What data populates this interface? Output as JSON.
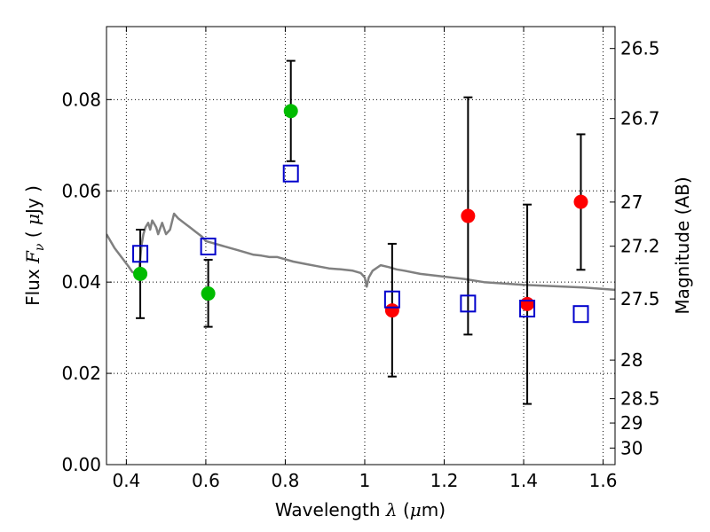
{
  "chart_data": {
    "type": "scatter",
    "xlabel": {
      "prefix": "Wavelength  ",
      "symbol": "λ",
      "suffix": " (",
      "mu": "μ",
      "unit": "m)"
    },
    "ylabel": {
      "prefix": "Flux  ",
      "symbol": "F",
      "subscript": "ν",
      "suffix": "  ( ",
      "mu": "μ",
      "unit": "Jy )"
    },
    "y2label": "Magnitude (AB)",
    "xlim": [
      0.35,
      1.63
    ],
    "ylim": [
      0.0,
      0.096
    ],
    "x_ticks": [
      0.4,
      0.6,
      0.8,
      1.0,
      1.2,
      1.4,
      1.6
    ],
    "x_tick_labels": [
      "0.4",
      "0.6",
      "0.8",
      "1",
      "1.2",
      "1.4",
      "1.6"
    ],
    "y_ticks": [
      0.0,
      0.02,
      0.04,
      0.06,
      0.08
    ],
    "y_tick_labels": [
      "0.00",
      "0.02",
      "0.04",
      "0.06",
      "0.08"
    ],
    "mag_ticks": [
      26.5,
      26.7,
      27,
      27.2,
      27.5,
      28,
      28.5,
      29,
      30
    ],
    "mag_tick_labels": [
      "26.5",
      "26.7",
      "27",
      "27.2",
      "27.5",
      "28",
      "28.5",
      "29",
      "30"
    ],
    "grid": true,
    "colors": {
      "green": "#00bb00",
      "red": "#ff0000",
      "model_box": "#0000cc",
      "spectrum": "#808080",
      "errorbar": "#000000"
    },
    "series": [
      {
        "marker": "circle",
        "color": "#00bb00",
        "points": [
          {
            "x": 0.435,
            "y": 0.0418,
            "ylo": 0.0321,
            "yhi": 0.0515
          },
          {
            "x": 0.606,
            "y": 0.0375,
            "ylo": 0.0302,
            "yhi": 0.0449
          },
          {
            "x": 0.814,
            "y": 0.0775,
            "ylo": 0.0665,
            "yhi": 0.0885
          }
        ]
      },
      {
        "marker": "circle",
        "color": "#ff0000",
        "points": [
          {
            "x": 1.069,
            "y": 0.0338,
            "ylo": 0.0193,
            "yhi": 0.0484
          },
          {
            "x": 1.26,
            "y": 0.0545,
            "ylo": 0.0285,
            "yhi": 0.0805
          },
          {
            "x": 1.409,
            "y": 0.0352,
            "ylo": 0.0133,
            "yhi": 0.057
          },
          {
            "x": 1.544,
            "y": 0.0576,
            "ylo": 0.0427,
            "yhi": 0.0724
          }
        ]
      },
      {
        "marker": "open-square",
        "color": "#0000cc",
        "points": [
          {
            "x": 0.435,
            "y": 0.0462
          },
          {
            "x": 0.606,
            "y": 0.0478
          },
          {
            "x": 0.814,
            "y": 0.0638
          },
          {
            "x": 1.069,
            "y": 0.0362
          },
          {
            "x": 1.26,
            "y": 0.0353
          },
          {
            "x": 1.409,
            "y": 0.0342
          },
          {
            "x": 1.544,
            "y": 0.033
          }
        ]
      },
      {
        "marker": "line",
        "color": "#808080",
        "x": [
          0.35,
          0.37,
          0.39,
          0.405,
          0.415,
          0.425,
          0.432,
          0.438,
          0.443,
          0.448,
          0.455,
          0.46,
          0.465,
          0.47,
          0.475,
          0.48,
          0.49,
          0.5,
          0.51,
          0.52,
          0.53,
          0.545,
          0.56,
          0.575,
          0.59,
          0.6,
          0.62,
          0.64,
          0.66,
          0.68,
          0.7,
          0.72,
          0.74,
          0.76,
          0.78,
          0.8,
          0.82,
          0.85,
          0.88,
          0.91,
          0.94,
          0.97,
          0.99,
          1.0,
          1.005,
          1.01,
          1.02,
          1.04,
          1.06,
          1.08,
          1.1,
          1.14,
          1.2,
          1.25,
          1.3,
          1.35,
          1.4,
          1.45,
          1.5,
          1.55,
          1.6,
          1.63
        ],
        "y": [
          0.0505,
          0.0475,
          0.0452,
          0.0435,
          0.0422,
          0.0418,
          0.0425,
          0.048,
          0.0505,
          0.052,
          0.053,
          0.0515,
          0.0535,
          0.0528,
          0.052,
          0.0505,
          0.053,
          0.0505,
          0.0515,
          0.055,
          0.054,
          0.053,
          0.052,
          0.051,
          0.05,
          0.049,
          0.0485,
          0.048,
          0.0475,
          0.047,
          0.0465,
          0.046,
          0.0458,
          0.0455,
          0.0455,
          0.045,
          0.0445,
          0.044,
          0.0435,
          0.043,
          0.0428,
          0.0425,
          0.042,
          0.041,
          0.039,
          0.041,
          0.0425,
          0.0437,
          0.0433,
          0.0428,
          0.0425,
          0.0418,
          0.0412,
          0.0407,
          0.04,
          0.0397,
          0.0394,
          0.0392,
          0.039,
          0.0388,
          0.0385,
          0.0383
        ]
      }
    ]
  }
}
